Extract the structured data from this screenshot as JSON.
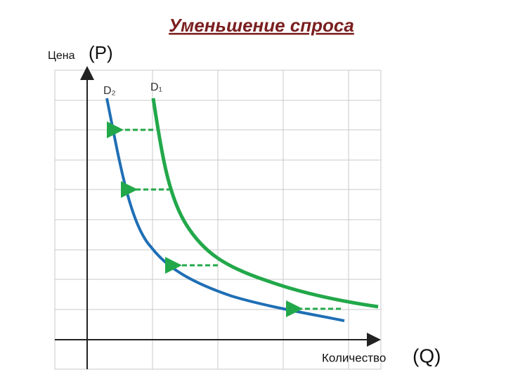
{
  "title": "Уменьшение спроса",
  "y_axis": {
    "label": "Цена",
    "symbol": "(P)"
  },
  "x_axis": {
    "label": "Количество",
    "symbol": "(Q)"
  },
  "curves": [
    {
      "label": "D₂"
    },
    {
      "label": "D₁"
    }
  ]
}
